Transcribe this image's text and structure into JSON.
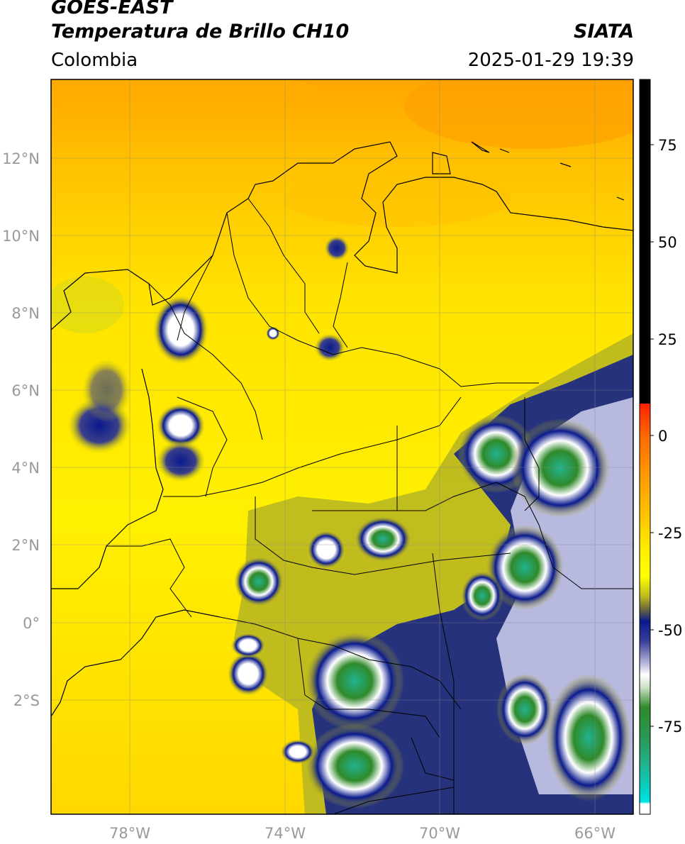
{
  "header": {
    "satellite": "GOES-EAST",
    "product": "Temperatura de Brillo CH10",
    "organization": "SIATA",
    "region": "Colombia",
    "datetime": "2025-01-29 19:39"
  },
  "map": {
    "lon_labels": [
      "78°W",
      "74°W",
      "70°W",
      "66°W"
    ],
    "lat_labels": [
      "12°N",
      "10°N",
      "8°N",
      "6°N",
      "4°N",
      "2°N",
      "0°",
      "2°S"
    ],
    "lon_range": [
      -80,
      -65
    ],
    "lat_range": [
      -4.9,
      14.1
    ],
    "grid": true
  },
  "colorbar": {
    "tick_labels": [
      "75",
      "50",
      "25",
      "0",
      "-25",
      "-50",
      "-75"
    ],
    "colors": {
      "black": "#000000",
      "red": "#ff2000",
      "orange": "#ff9c00",
      "yellow": "#ffef00",
      "olive": "#bdb920",
      "navy": "#0a1a8c",
      "white": "#ffffff",
      "green": "#2f8a2a",
      "teal": "#22b38f",
      "cyan": "#00e5e5"
    }
  }
}
